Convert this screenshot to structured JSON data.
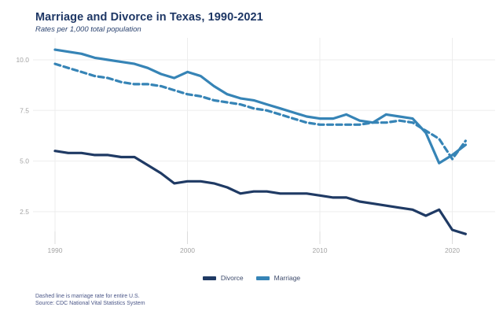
{
  "title": "Marriage and Divorce in Texas, 1990-2021",
  "subtitle": "Rates per 1,000 total population",
  "footer": {
    "note": "Dashed line is marriage rate for entire U.S.",
    "source": "Source: CDC National Vital Statistics System"
  },
  "legend": {
    "items": [
      {
        "label": "Divorce",
        "color": "#1f3a64"
      },
      {
        "label": "Marriage",
        "color": "#3684b6"
      }
    ]
  },
  "colors": {
    "navy": "#1f3a64",
    "blue": "#3684b6",
    "grid": "#ededed",
    "tick": "#dcdcdc",
    "axis_text": "#a3a3a3"
  },
  "chart_data": {
    "type": "line",
    "x": [
      1990,
      1991,
      1992,
      1993,
      1994,
      1995,
      1996,
      1997,
      1998,
      1999,
      2000,
      2001,
      2002,
      2003,
      2004,
      2005,
      2006,
      2007,
      2008,
      2009,
      2010,
      2011,
      2012,
      2013,
      2014,
      2015,
      2016,
      2017,
      2018,
      2019,
      2020,
      2021
    ],
    "series": [
      {
        "name": "Divorce (Texas)",
        "style": "solid",
        "color": "#1f3a64",
        "values": [
          5.5,
          5.4,
          5.4,
          5.3,
          5.3,
          5.2,
          5.2,
          4.8,
          4.4,
          3.9,
          4.0,
          4.0,
          3.9,
          3.7,
          3.4,
          3.5,
          3.5,
          3.4,
          3.4,
          3.4,
          3.3,
          3.2,
          3.2,
          3.0,
          2.9,
          2.8,
          2.7,
          2.6,
          2.3,
          2.6,
          1.6,
          1.4
        ]
      },
      {
        "name": "Marriage (Texas)",
        "style": "solid",
        "color": "#3684b6",
        "values": [
          10.5,
          10.4,
          10.3,
          10.1,
          10.0,
          9.9,
          9.8,
          9.6,
          9.3,
          9.1,
          9.4,
          9.2,
          8.7,
          8.3,
          8.1,
          8.0,
          7.8,
          7.6,
          7.4,
          7.2,
          7.1,
          7.1,
          7.3,
          7.0,
          6.9,
          7.3,
          7.2,
          7.1,
          6.4,
          4.9,
          5.3,
          5.8
        ]
      },
      {
        "name": "Marriage (entire U.S.)",
        "style": "dashed",
        "color": "#3684b6",
        "values": [
          9.8,
          9.6,
          9.4,
          9.2,
          9.1,
          8.9,
          8.8,
          8.8,
          8.7,
          8.5,
          8.3,
          8.2,
          8.0,
          7.9,
          7.8,
          7.6,
          7.5,
          7.3,
          7.1,
          6.9,
          6.8,
          6.8,
          6.8,
          6.8,
          6.9,
          6.9,
          7.0,
          6.9,
          6.5,
          6.1,
          5.1,
          6.0
        ]
      }
    ],
    "x_ticks": [
      {
        "value": 1990,
        "label": "1990"
      },
      {
        "value": 2000,
        "label": "2000"
      },
      {
        "value": 2010,
        "label": "2010"
      },
      {
        "value": 2020,
        "label": "2020"
      }
    ],
    "y_ticks": [
      {
        "value": 10.0,
        "label": "10.0"
      },
      {
        "value": 7.5,
        "label": "7.5"
      },
      {
        "value": 5.0,
        "label": "5.0"
      },
      {
        "value": 2.5,
        "label": "2.5"
      }
    ],
    "xlim": [
      1990,
      2021
    ],
    "ylim": [
      0.9,
      11.2
    ],
    "grid": true,
    "legend_position": "bottom"
  }
}
